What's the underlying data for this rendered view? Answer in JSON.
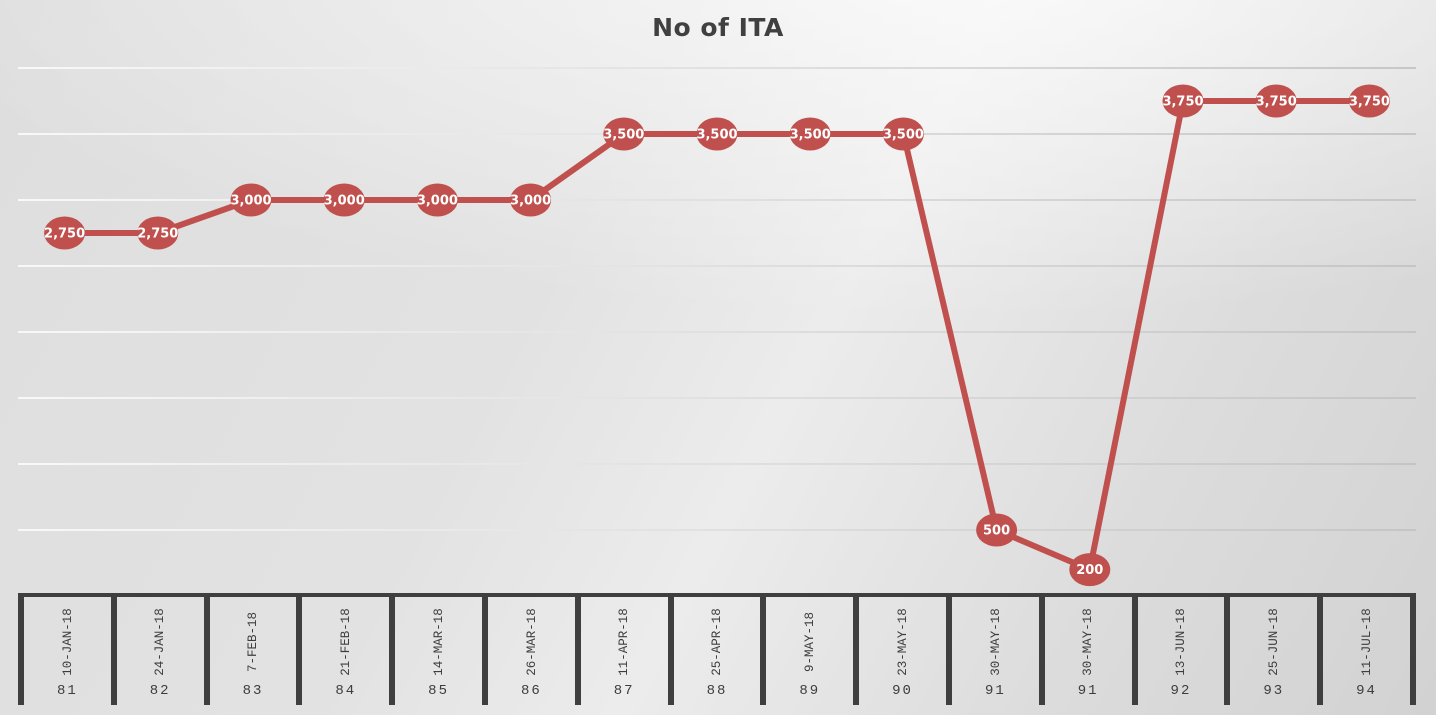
{
  "chart_data": {
    "type": "line",
    "title": "No of ITA",
    "categories": [
      "10-JAN-18",
      "24-JAN-18",
      "7-FEB-18",
      "21-FEB-18",
      "14-MAR-18",
      "26-MAR-18",
      "11-APR-18",
      "25-APR-18",
      "9-MAY-18",
      "23-MAY-18",
      "30-MAY-18",
      "30-MAY-18",
      "13-JUN-18",
      "25-JUN-18",
      "11-JUL-18"
    ],
    "category_ids": [
      "81",
      "82",
      "83",
      "84",
      "85",
      "86",
      "87",
      "88",
      "89",
      "90",
      "91",
      "91",
      "92",
      "93",
      "94"
    ],
    "values": [
      2750,
      2750,
      3000,
      3000,
      3000,
      3000,
      3500,
      3500,
      3500,
      3500,
      500,
      200,
      3750,
      3750,
      3750
    ],
    "value_labels": [
      "2,750",
      "2,750",
      "3,000",
      "3,000",
      "3,000",
      "3,000",
      "3,500",
      "3,500",
      "3,500",
      "3,500",
      "500",
      "200",
      "3,750",
      "3,750",
      "3,750"
    ],
    "xlabel": "",
    "ylabel": "",
    "ylim": [
      0,
      4000
    ],
    "gridline_step": 500,
    "grid": true,
    "legend": "none",
    "colors": {
      "series": "#c0504d",
      "marker_label_text": "#ffffff",
      "title_text": "#404040",
      "axis_border": "#3f3f3f",
      "axis_text": "#3d3d3d",
      "gridline_light": "#fbfbfb",
      "gridline_dark": "#c3c3c3"
    }
  }
}
